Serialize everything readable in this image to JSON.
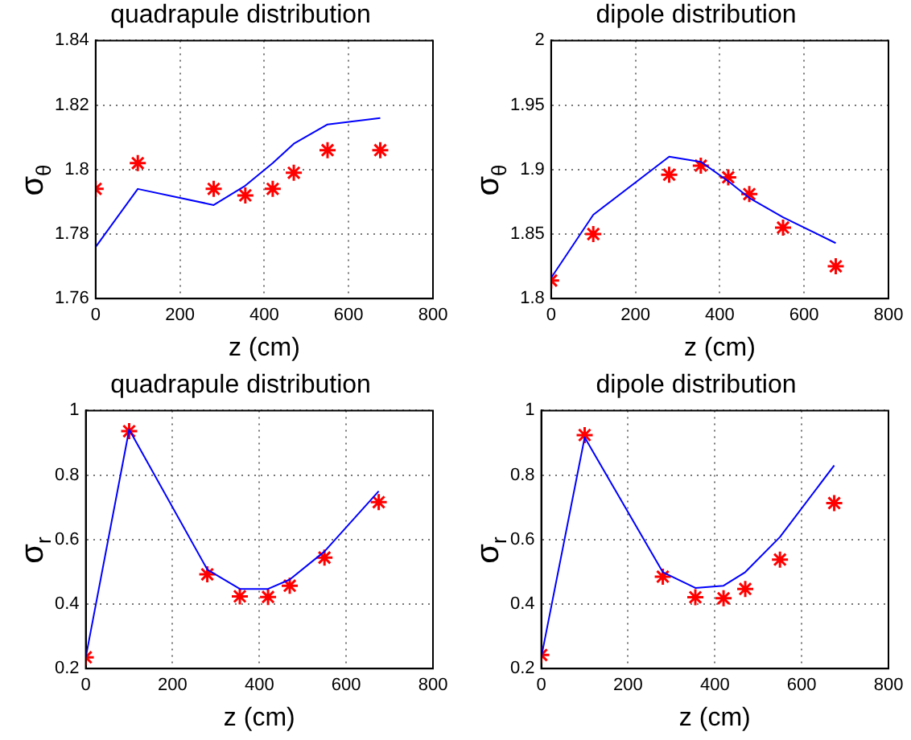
{
  "chart_data": [
    {
      "type": "line",
      "title": "quadrapule distribution",
      "xlabel": "z (cm)",
      "ylabel": "σ$_{θ}$",
      "x": [
        0,
        100,
        280,
        355,
        420,
        470,
        550,
        675
      ],
      "xlim": [
        0,
        800
      ],
      "xticks": [
        0,
        200,
        400,
        600,
        800
      ],
      "ylim": [
        1.76,
        1.84
      ],
      "yticks": [
        1.76,
        1.78,
        1.8,
        1.82,
        1.84
      ],
      "grid": true,
      "legend": false,
      "series": [
        {
          "color": "#0000ff",
          "marker": "none",
          "values": [
            1.776,
            1.794,
            1.789,
            1.795,
            1.802,
            1.808,
            1.814,
            1.816
          ]
        },
        {
          "type": "scatter",
          "color": "#ff0000",
          "marker": "cross",
          "values": [
            1.794,
            1.802,
            1.794,
            1.792,
            1.794,
            1.799,
            1.806,
            1.806
          ]
        }
      ]
    },
    {
      "type": "line",
      "title": "dipole distribution",
      "xlabel": "z (cm)",
      "ylabel": "σ$_{θ}$",
      "x": [
        0,
        100,
        280,
        355,
        420,
        470,
        550,
        675
      ],
      "xlim": [
        0,
        800
      ],
      "xticks": [
        0,
        200,
        400,
        600,
        800
      ],
      "ylim": [
        1.8,
        2
      ],
      "yticks": [
        1.8,
        1.85,
        1.9,
        1.95,
        2
      ],
      "grid": true,
      "legend": false,
      "series": [
        {
          "color": "#0000ff",
          "marker": "none",
          "values": [
            1.816,
            1.865,
            1.91,
            1.906,
            1.891,
            1.878,
            1.863,
            1.843
          ]
        },
        {
          "type": "scatter",
          "color": "#ff0000",
          "marker": "cross",
          "values": [
            1.814,
            1.85,
            1.896,
            1.903,
            1.894,
            1.881,
            1.855,
            1.825
          ]
        }
      ]
    },
    {
      "type": "line",
      "title": "quadrapule distribution",
      "xlabel": "z (cm)",
      "ylabel": "σ$_{r}$",
      "x": [
        0,
        100,
        280,
        355,
        420,
        470,
        550,
        675
      ],
      "xlim": [
        0,
        800
      ],
      "xticks": [
        0,
        200,
        400,
        600,
        800
      ],
      "ylim": [
        0.2,
        1
      ],
      "yticks": [
        0.2,
        0.4,
        0.6,
        0.8,
        1
      ],
      "grid": true,
      "legend": false,
      "series": [
        {
          "color": "#0000ff",
          "marker": "none",
          "values": [
            0.235,
            0.941,
            0.507,
            0.447,
            0.447,
            0.476,
            0.563,
            0.75
          ]
        },
        {
          "type": "scatter",
          "color": "#ff0000",
          "marker": "cross",
          "values": [
            0.235,
            0.936,
            0.492,
            0.424,
            0.422,
            0.457,
            0.544,
            0.716
          ]
        }
      ]
    },
    {
      "type": "line",
      "title": "dipole distribution",
      "xlabel": "z (cm)",
      "ylabel": "σ$_{r}$",
      "x": [
        0,
        100,
        280,
        355,
        420,
        470,
        550,
        675
      ],
      "xlim": [
        0,
        800
      ],
      "xticks": [
        0,
        200,
        400,
        600,
        800
      ],
      "ylim": [
        0.2,
        1
      ],
      "yticks": [
        0.2,
        0.4,
        0.6,
        0.8,
        1
      ],
      "grid": true,
      "legend": false,
      "series": [
        {
          "color": "#0000ff",
          "marker": "none",
          "values": [
            0.235,
            0.917,
            0.499,
            0.45,
            0.457,
            0.499,
            0.608,
            0.83
          ]
        },
        {
          "type": "scatter",
          "color": "#ff0000",
          "marker": "cross",
          "values": [
            0.242,
            0.924,
            0.485,
            0.421,
            0.418,
            0.447,
            0.538,
            0.713
          ]
        }
      ]
    }
  ]
}
